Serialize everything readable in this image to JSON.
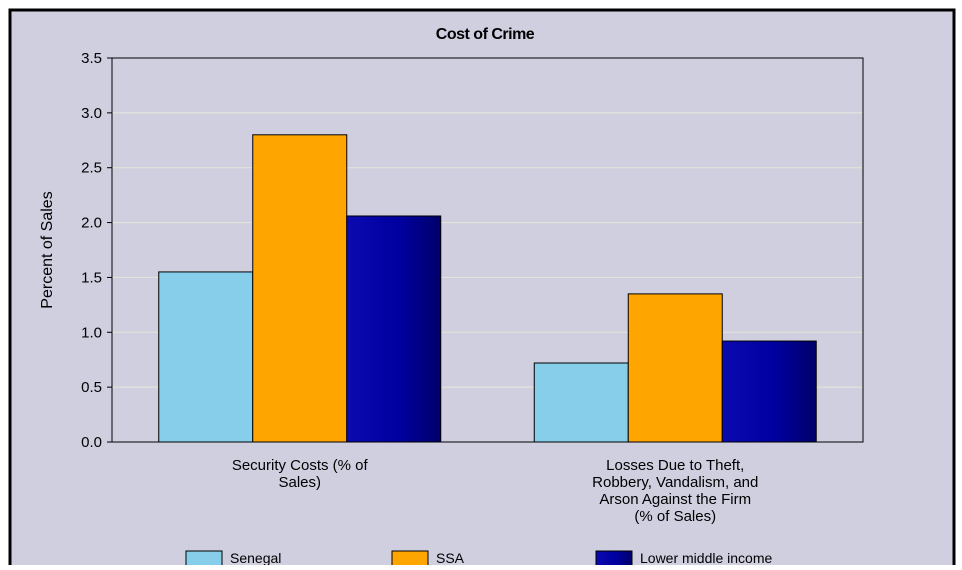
{
  "chart_data": {
    "type": "bar",
    "title": "Cost of Crime",
    "xlabel": "",
    "ylabel": "Percent of Sales",
    "ylim": [
      0,
      3.5
    ],
    "yticks": [
      "0.0",
      "0.5",
      "1.0",
      "1.5",
      "2.0",
      "2.5",
      "3.0",
      "3.5"
    ],
    "grid": true,
    "legend_position": "bottom",
    "categories": [
      [
        "Security Costs (% of",
        "Sales)"
      ],
      [
        "Losses Due to Theft,",
        "Robbery, Vandalism, and",
        "Arson Against the Firm",
        "(% of Sales)"
      ]
    ],
    "series": [
      {
        "name": "Senegal",
        "color": "#87ceeb",
        "values": [
          1.55,
          0.72
        ]
      },
      {
        "name": "SSA",
        "color": "#ffa500",
        "values": [
          2.8,
          1.35
        ]
      },
      {
        "name": "Lower middle income",
        "color": "#0000a0",
        "values": [
          2.06,
          0.92
        ]
      }
    ],
    "colors": {
      "background": "#cfcfe0",
      "plot_background": "#cfcfe0",
      "gridline": "#e6e6d8",
      "frame": "#000000"
    }
  }
}
